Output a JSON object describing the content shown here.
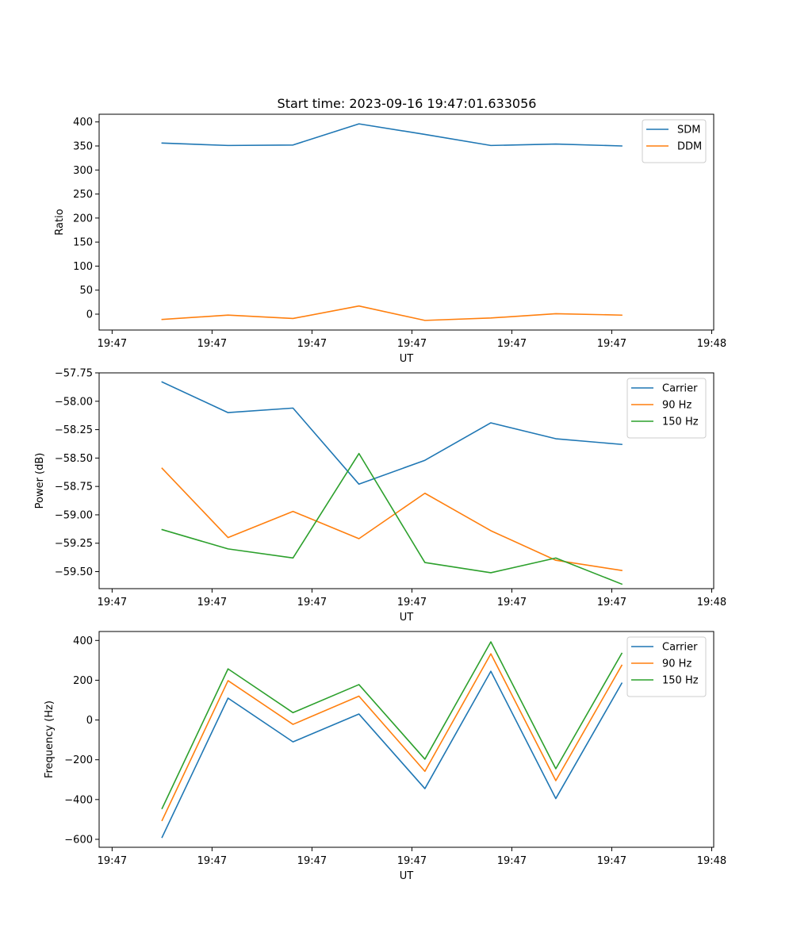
{
  "figure_title": "Start time: 2023-09-16 19:47:01.633056",
  "chart_data": [
    {
      "type": "line",
      "id": "ratio",
      "title": "Start time: 2023-09-16 19:47:01.633056",
      "xlabel": "UT",
      "ylabel": "Ratio",
      "x_tick_labels": [
        "19:47",
        "19:47",
        "19:47",
        "19:47",
        "19:47",
        "19:47",
        "19:48"
      ],
      "x_tick_positions": [
        0,
        1,
        2,
        3,
        4,
        5,
        6
      ],
      "xlim": [
        -0.13,
        6.02
      ],
      "ylim": [
        -33,
        416
      ],
      "yticks": [
        0,
        50,
        100,
        150,
        200,
        250,
        300,
        350,
        400
      ],
      "ytick_labels": [
        "0",
        "50",
        "100",
        "150",
        "200",
        "250",
        "300",
        "350",
        "400"
      ],
      "legend_position": "top-right",
      "x": [
        0.5,
        1.16,
        1.81,
        2.47,
        3.13,
        3.79,
        4.44,
        5.1
      ],
      "series": [
        {
          "name": "SDM",
          "color": "#1f77b4",
          "values": [
            356,
            351,
            352,
            396,
            374,
            351,
            354,
            350
          ]
        },
        {
          "name": "DDM",
          "color": "#ff7f0e",
          "values": [
            -11,
            -2,
            -9,
            17,
            -13,
            -8,
            1,
            -2
          ]
        }
      ]
    },
    {
      "type": "line",
      "id": "power",
      "xlabel": "UT",
      "ylabel": "Power (dB)",
      "x_tick_labels": [
        "19:47",
        "19:47",
        "19:47",
        "19:47",
        "19:47",
        "19:47",
        "19:48"
      ],
      "x_tick_positions": [
        0,
        1,
        2,
        3,
        4,
        5,
        6
      ],
      "xlim": [
        -0.13,
        6.02
      ],
      "ylim": [
        -59.65,
        -57.75
      ],
      "yticks": [
        -59.5,
        -59.25,
        -59.0,
        -58.75,
        -58.5,
        -58.25,
        -58.0,
        -57.75
      ],
      "ytick_labels": [
        "−59.50",
        "−59.25",
        "−59.00",
        "−58.75",
        "−58.50",
        "−58.25",
        "−58.00",
        "−57.75"
      ],
      "legend_position": "top-right",
      "x": [
        0.5,
        1.16,
        1.81,
        2.47,
        3.13,
        3.79,
        4.44,
        5.1
      ],
      "series": [
        {
          "name": "Carrier",
          "color": "#1f77b4",
          "values": [
            -57.83,
            -58.1,
            -58.06,
            -58.73,
            -58.52,
            -58.19,
            -58.33,
            -58.38
          ]
        },
        {
          "name": "90 Hz",
          "color": "#ff7f0e",
          "values": [
            -58.59,
            -59.2,
            -58.97,
            -59.21,
            -58.81,
            -59.14,
            -59.4,
            -59.49
          ]
        },
        {
          "name": "150 Hz",
          "color": "#2ca02c",
          "values": [
            -59.13,
            -59.3,
            -59.38,
            -58.46,
            -59.42,
            -59.51,
            -59.38,
            -59.61
          ]
        }
      ]
    },
    {
      "type": "line",
      "id": "frequency",
      "xlabel": "UT",
      "ylabel": "Frequency (Hz)",
      "x_tick_labels": [
        "19:47",
        "19:47",
        "19:47",
        "19:47",
        "19:47",
        "19:47",
        "19:48"
      ],
      "x_tick_positions": [
        0,
        1,
        2,
        3,
        4,
        5,
        6
      ],
      "xlim": [
        -0.13,
        6.02
      ],
      "ylim": [
        -640,
        445
      ],
      "yticks": [
        -600,
        -400,
        -200,
        0,
        200,
        400
      ],
      "ytick_labels": [
        "−600",
        "−400",
        "−200",
        "0",
        "200",
        "400"
      ],
      "legend_position": "top-right",
      "x": [
        0.5,
        1.16,
        1.81,
        2.47,
        3.13,
        3.79,
        4.44,
        5.1
      ],
      "series": [
        {
          "name": "Carrier",
          "color": "#1f77b4",
          "values": [
            -590,
            110,
            -110,
            30,
            -345,
            245,
            -395,
            185
          ]
        },
        {
          "name": "90 Hz",
          "color": "#ff7f0e",
          "values": [
            -505,
            198,
            -22,
            120,
            -258,
            333,
            -305,
            275
          ]
        },
        {
          "name": "150 Hz",
          "color": "#2ca02c",
          "values": [
            -445,
            257,
            37,
            178,
            -197,
            393,
            -245,
            335
          ]
        }
      ]
    }
  ]
}
